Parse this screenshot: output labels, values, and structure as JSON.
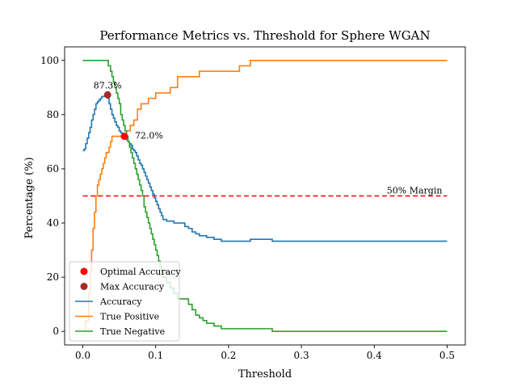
{
  "chart_data": {
    "type": "line",
    "title": "Performance Metrics vs. Threshold for Sphere WGAN",
    "xlabel": "Threshold",
    "ylabel": "Percentage (%)",
    "xlim": [
      -0.025,
      0.525
    ],
    "ylim": [
      -5,
      105
    ],
    "x_ticks": [
      0.0,
      0.1,
      0.2,
      0.3,
      0.4,
      0.5
    ],
    "x_tick_labels": [
      "0.0",
      "0.1",
      "0.2",
      "0.3",
      "0.4",
      "0.5"
    ],
    "y_ticks": [
      0,
      20,
      40,
      60,
      80,
      100
    ],
    "y_tick_labels": [
      "0",
      "20",
      "40",
      "60",
      "80",
      "100"
    ],
    "grid": false,
    "legend_position": "lower-left",
    "series": [
      {
        "name": "Accuracy",
        "color": "#1f77b4",
        "style": "step",
        "x": [
          0.0,
          0.002,
          0.004,
          0.006,
          0.008,
          0.01,
          0.012,
          0.014,
          0.016,
          0.018,
          0.02,
          0.022,
          0.024,
          0.026,
          0.028,
          0.03,
          0.032,
          0.034,
          0.036,
          0.038,
          0.04,
          0.042,
          0.044,
          0.046,
          0.048,
          0.05,
          0.052,
          0.054,
          0.056,
          0.058,
          0.06,
          0.062,
          0.064,
          0.066,
          0.068,
          0.07,
          0.072,
          0.074,
          0.076,
          0.078,
          0.08,
          0.082,
          0.084,
          0.086,
          0.088,
          0.09,
          0.092,
          0.094,
          0.096,
          0.098,
          0.1,
          0.102,
          0.104,
          0.106,
          0.108,
          0.11,
          0.115,
          0.12,
          0.125,
          0.13,
          0.135,
          0.14,
          0.145,
          0.15,
          0.155,
          0.16,
          0.17,
          0.18,
          0.19,
          0.2,
          0.21,
          0.22,
          0.23,
          0.24,
          0.25,
          0.26,
          0.3,
          0.35,
          0.4,
          0.45,
          0.5
        ],
        "values": [
          66.7,
          67.3,
          69.3,
          71.3,
          73.3,
          75.3,
          78.0,
          80.0,
          82.0,
          84.0,
          84.7,
          85.3,
          86.0,
          86.7,
          86.7,
          87.3,
          86.7,
          86.0,
          84.0,
          82.0,
          80.0,
          78.7,
          77.3,
          76.0,
          75.3,
          74.0,
          73.3,
          72.7,
          72.0,
          71.3,
          70.7,
          70.0,
          69.3,
          68.7,
          67.3,
          66.7,
          66.0,
          64.7,
          63.3,
          62.0,
          61.3,
          60.0,
          58.7,
          57.3,
          56.0,
          54.7,
          53.3,
          52.0,
          50.7,
          49.3,
          48.0,
          46.7,
          45.3,
          44.0,
          42.7,
          41.3,
          40.7,
          40.7,
          40.0,
          40.0,
          40.0,
          38.7,
          38.0,
          36.7,
          36.0,
          35.3,
          34.7,
          34.0,
          33.3,
          33.3,
          33.3,
          33.3,
          34.0,
          34.0,
          34.0,
          33.3,
          33.3,
          33.3,
          33.3,
          33.3,
          33.3
        ]
      },
      {
        "name": "True Positive",
        "color": "#ff7f0e",
        "style": "step",
        "x": [
          0.0,
          0.004,
          0.008,
          0.01,
          0.012,
          0.014,
          0.016,
          0.018,
          0.02,
          0.022,
          0.024,
          0.026,
          0.028,
          0.03,
          0.032,
          0.034,
          0.036,
          0.038,
          0.04,
          0.044,
          0.048,
          0.052,
          0.056,
          0.06,
          0.065,
          0.07,
          0.075,
          0.08,
          0.09,
          0.1,
          0.11,
          0.12,
          0.13,
          0.15,
          0.16,
          0.18,
          0.2,
          0.21,
          0.215,
          0.22,
          0.23,
          0.26,
          0.3,
          0.35,
          0.4,
          0.45,
          0.5
        ],
        "values": [
          0,
          4,
          14,
          22,
          30,
          38,
          44,
          50,
          54,
          56,
          58,
          60,
          62,
          64,
          66,
          66,
          68,
          70,
          72,
          72,
          72,
          72,
          72,
          74,
          76,
          78,
          82,
          84,
          86,
          88,
          88,
          90,
          94,
          94,
          96,
          96,
          96,
          96,
          98,
          98,
          100,
          100,
          100,
          100,
          100,
          100,
          100
        ]
      },
      {
        "name": "True Negative",
        "color": "#2ca02c",
        "style": "step",
        "x": [
          0.0,
          0.01,
          0.02,
          0.03,
          0.035,
          0.038,
          0.04,
          0.042,
          0.044,
          0.046,
          0.048,
          0.05,
          0.052,
          0.054,
          0.056,
          0.058,
          0.06,
          0.062,
          0.064,
          0.066,
          0.068,
          0.07,
          0.072,
          0.074,
          0.076,
          0.078,
          0.08,
          0.082,
          0.084,
          0.086,
          0.088,
          0.09,
          0.092,
          0.094,
          0.096,
          0.098,
          0.1,
          0.102,
          0.104,
          0.106,
          0.108,
          0.11,
          0.115,
          0.12,
          0.125,
          0.13,
          0.14,
          0.145,
          0.15,
          0.155,
          0.16,
          0.165,
          0.17,
          0.175,
          0.18,
          0.19,
          0.2,
          0.22,
          0.24,
          0.25,
          0.26,
          0.3,
          0.35,
          0.4,
          0.45,
          0.5
        ],
        "values": [
          100,
          100,
          100,
          100,
          98,
          96,
          94,
          92,
          90,
          88,
          86,
          84,
          80,
          78,
          76,
          74,
          72,
          70,
          68,
          66,
          64,
          62,
          60,
          58,
          56,
          54,
          52,
          50,
          46,
          44,
          42,
          40,
          38,
          36,
          34,
          32,
          30,
          28,
          26,
          24,
          22,
          20,
          18,
          16,
          14,
          12,
          12,
          10,
          8,
          6,
          5,
          4,
          3,
          3,
          2,
          1,
          1,
          1,
          1,
          1,
          0,
          0,
          0,
          0,
          0,
          0
        ]
      }
    ],
    "reference_line": {
      "y": 50,
      "label": "50% Margin",
      "color": "#ff0000",
      "style": "dashed"
    },
    "markers": [
      {
        "name": "Optimal Accuracy",
        "x": 0.057,
        "y": 72.0,
        "color": "#ff0000",
        "label": "72.0%"
      },
      {
        "name": "Max Accuracy",
        "x": 0.034,
        "y": 87.3,
        "color": "#a52a2a",
        "label": "87.3%"
      }
    ],
    "legend_entries": [
      {
        "label": "Optimal Accuracy",
        "kind": "marker",
        "color": "#ff0000"
      },
      {
        "label": "Max Accuracy",
        "kind": "marker",
        "color": "#a52a2a"
      },
      {
        "label": "Accuracy",
        "kind": "line",
        "color": "#1f77b4"
      },
      {
        "label": "True Positive",
        "kind": "line",
        "color": "#ff7f0e"
      },
      {
        "label": "True Negative",
        "kind": "line",
        "color": "#2ca02c"
      }
    ]
  }
}
